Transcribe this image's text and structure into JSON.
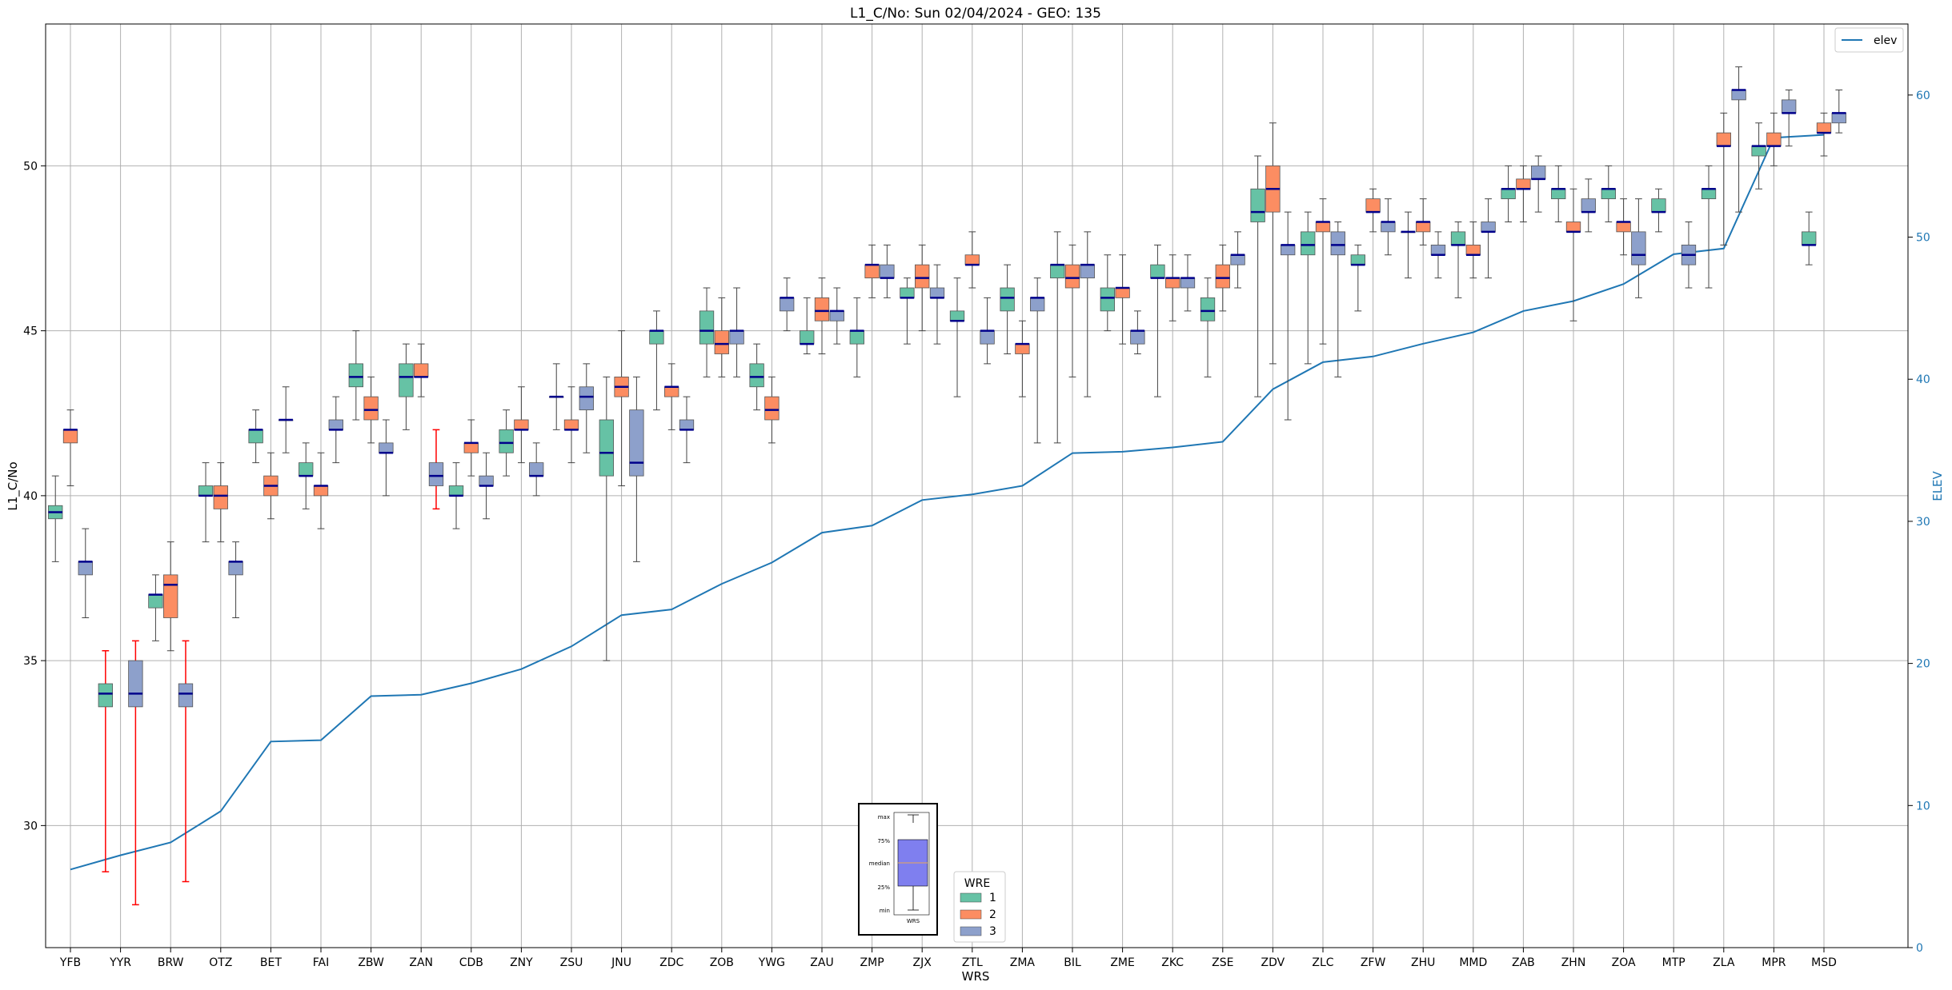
{
  "chart_data": {
    "type": "box",
    "title": "L1_C/No: Sun 02/04/2024 - GEO: 135",
    "xlabel": "WRS",
    "ylabel": "L1_C/No",
    "ylabel_right": "ELEV",
    "ylim": [
      26.3,
      54.3
    ],
    "ylim_right": [
      0,
      65
    ],
    "yticks": [
      30,
      35,
      40,
      45,
      50
    ],
    "yticks_right": [
      0,
      10,
      20,
      30,
      40,
      50,
      60
    ],
    "grid": true,
    "legend_wre": {
      "title": "WRE",
      "placement": "bottom-center",
      "entries": [
        "1",
        "2",
        "3"
      ]
    },
    "legend_elev": {
      "label": "elev",
      "placement": "top-right"
    },
    "colors": {
      "1": "#66c2a5",
      "2": "#fc8d62",
      "3": "#8da0cb",
      "elev": "#1f77b4",
      "median": "#00008b",
      "red_whisker": "#ff0000"
    },
    "inset": {
      "labels": [
        "max",
        "75%",
        "median",
        "25%",
        "min"
      ],
      "xlabel": "WRS"
    },
    "categories": [
      "YFB",
      "YYR",
      "BRW",
      "OTZ",
      "BET",
      "FAI",
      "ZBW",
      "ZAN",
      "CDB",
      "ZNY",
      "ZSU",
      "JNU",
      "ZDC",
      "ZOB",
      "YWG",
      "ZAU",
      "ZMP",
      "ZJX",
      "ZTL",
      "ZMA",
      "BIL",
      "ZME",
      "ZKC",
      "ZSE",
      "ZDV",
      "ZLC",
      "ZFW",
      "ZHU",
      "MMD",
      "ZAB",
      "ZHN",
      "ZOA",
      "MTP",
      "ZLA",
      "MPR",
      "MSD"
    ],
    "elev": [
      5.5,
      6.5,
      7.4,
      9.6,
      14.5,
      14.6,
      17.7,
      17.8,
      18.6,
      19.6,
      21.2,
      23.4,
      23.8,
      25.6,
      27.1,
      29.2,
      29.7,
      31.5,
      31.9,
      32.5,
      34.8,
      34.9,
      35.2,
      35.6,
      39.3,
      41.2,
      41.6,
      42.5,
      43.3,
      44.8,
      45.5,
      46.7,
      48.8,
      49.2,
      57.0,
      57.2
    ],
    "boxes": [
      {
        "wrs": "YFB",
        "wre": "1",
        "min": 38.0,
        "q1": 39.3,
        "median": 39.5,
        "q3": 39.7,
        "max": 40.6
      },
      {
        "wrs": "YFB",
        "wre": "2",
        "min": 40.3,
        "q1": 41.6,
        "median": 42.0,
        "q3": 42.0,
        "max": 42.6
      },
      {
        "wrs": "YFB",
        "wre": "3",
        "min": 36.3,
        "q1": 37.6,
        "median": 38.0,
        "q3": 38.0,
        "max": 39.0
      },
      {
        "wrs": "YYR",
        "wre": "1",
        "min": 28.6,
        "q1": 33.6,
        "median": 34.0,
        "q3": 34.3,
        "max": 35.3,
        "red": true
      },
      {
        "wrs": "YYR",
        "wre": "3",
        "min": 27.6,
        "q1": 33.6,
        "median": 34.0,
        "q3": 35.0,
        "max": 35.6,
        "red": true
      },
      {
        "wrs": "BRW",
        "wre": "1",
        "min": 35.6,
        "q1": 36.6,
        "median": 37.0,
        "q3": 37.0,
        "max": 37.6
      },
      {
        "wrs": "BRW",
        "wre": "2",
        "min": 35.3,
        "q1": 36.3,
        "median": 37.3,
        "q3": 37.6,
        "max": 38.6
      },
      {
        "wrs": "BRW",
        "wre": "3",
        "min": 28.3,
        "q1": 33.6,
        "median": 34.0,
        "q3": 34.3,
        "max": 35.6,
        "red": true
      },
      {
        "wrs": "OTZ",
        "wre": "1",
        "min": 38.6,
        "q1": 40.0,
        "median": 40.0,
        "q3": 40.3,
        "max": 41.0
      },
      {
        "wrs": "OTZ",
        "wre": "2",
        "min": 38.6,
        "q1": 39.6,
        "median": 40.0,
        "q3": 40.3,
        "max": 41.0
      },
      {
        "wrs": "OTZ",
        "wre": "3",
        "min": 36.3,
        "q1": 37.6,
        "median": 38.0,
        "q3": 38.0,
        "max": 38.6
      },
      {
        "wrs": "BET",
        "wre": "1",
        "min": 41.0,
        "q1": 41.6,
        "median": 42.0,
        "q3": 42.0,
        "max": 42.6
      },
      {
        "wrs": "BET",
        "wre": "2",
        "min": 39.3,
        "q1": 40.0,
        "median": 40.3,
        "q3": 40.6,
        "max": 41.3
      },
      {
        "wrs": "BET",
        "wre": "3",
        "min": 41.3,
        "q1": 42.3,
        "median": 42.3,
        "q3": 42.3,
        "max": 43.3
      },
      {
        "wrs": "FAI",
        "wre": "1",
        "min": 39.6,
        "q1": 40.6,
        "median": 40.6,
        "q3": 41.0,
        "max": 41.6
      },
      {
        "wrs": "FAI",
        "wre": "2",
        "min": 39.0,
        "q1": 40.0,
        "median": 40.3,
        "q3": 40.3,
        "max": 41.3
      },
      {
        "wrs": "FAI",
        "wre": "3",
        "min": 41.0,
        "q1": 42.0,
        "median": 42.0,
        "q3": 42.3,
        "max": 43.0
      },
      {
        "wrs": "ZBW",
        "wre": "1",
        "min": 42.3,
        "q1": 43.3,
        "median": 43.6,
        "q3": 44.0,
        "max": 45.0
      },
      {
        "wrs": "ZBW",
        "wre": "2",
        "min": 41.6,
        "q1": 42.3,
        "median": 42.6,
        "q3": 43.0,
        "max": 43.6
      },
      {
        "wrs": "ZBW",
        "wre": "3",
        "min": 40.0,
        "q1": 41.3,
        "median": 41.3,
        "q3": 41.6,
        "max": 42.3
      },
      {
        "wrs": "ZAN",
        "wre": "1",
        "min": 42.0,
        "q1": 43.0,
        "median": 43.6,
        "q3": 44.0,
        "max": 44.6
      },
      {
        "wrs": "ZAN",
        "wre": "2",
        "min": 43.0,
        "q1": 43.6,
        "median": 43.6,
        "q3": 44.0,
        "max": 44.6
      },
      {
        "wrs": "ZAN",
        "wre": "3",
        "min": 39.6,
        "q1": 40.3,
        "median": 40.6,
        "q3": 41.0,
        "max": 42.0,
        "red": true
      },
      {
        "wrs": "CDB",
        "wre": "1",
        "min": 39.0,
        "q1": 40.0,
        "median": 40.0,
        "q3": 40.3,
        "max": 41.0
      },
      {
        "wrs": "CDB",
        "wre": "2",
        "min": 40.6,
        "q1": 41.3,
        "median": 41.6,
        "q3": 41.6,
        "max": 42.3
      },
      {
        "wrs": "CDB",
        "wre": "3",
        "min": 39.3,
        "q1": 40.3,
        "median": 40.3,
        "q3": 40.6,
        "max": 41.3
      },
      {
        "wrs": "ZNY",
        "wre": "1",
        "min": 40.6,
        "q1": 41.3,
        "median": 41.6,
        "q3": 42.0,
        "max": 42.6
      },
      {
        "wrs": "ZNY",
        "wre": "2",
        "min": 41.0,
        "q1": 42.0,
        "median": 42.0,
        "q3": 42.3,
        "max": 43.3
      },
      {
        "wrs": "ZNY",
        "wre": "3",
        "min": 40.0,
        "q1": 40.6,
        "median": 40.6,
        "q3": 41.0,
        "max": 41.6
      },
      {
        "wrs": "ZSU",
        "wre": "1",
        "min": 42.0,
        "q1": 43.0,
        "median": 43.0,
        "q3": 43.0,
        "max": 44.0
      },
      {
        "wrs": "ZSU",
        "wre": "2",
        "min": 41.0,
        "q1": 42.0,
        "median": 42.0,
        "q3": 42.3,
        "max": 43.3
      },
      {
        "wrs": "ZSU",
        "wre": "3",
        "min": 41.3,
        "q1": 42.6,
        "median": 43.0,
        "q3": 43.3,
        "max": 44.0
      },
      {
        "wrs": "JNU",
        "wre": "1",
        "min": 35.0,
        "q1": 40.6,
        "median": 41.3,
        "q3": 42.3,
        "max": 43.6
      },
      {
        "wrs": "JNU",
        "wre": "2",
        "min": 40.3,
        "q1": 43.0,
        "median": 43.3,
        "q3": 43.6,
        "max": 45.0
      },
      {
        "wrs": "JNU",
        "wre": "3",
        "min": 38.0,
        "q1": 40.6,
        "median": 41.0,
        "q3": 42.6,
        "max": 43.6
      },
      {
        "wrs": "ZDC",
        "wre": "1",
        "min": 42.6,
        "q1": 44.6,
        "median": 45.0,
        "q3": 45.0,
        "max": 45.6
      },
      {
        "wrs": "ZDC",
        "wre": "2",
        "min": 42.0,
        "q1": 43.0,
        "median": 43.3,
        "q3": 43.3,
        "max": 44.0
      },
      {
        "wrs": "ZDC",
        "wre": "3",
        "min": 41.0,
        "q1": 42.0,
        "median": 42.0,
        "q3": 42.3,
        "max": 43.0
      },
      {
        "wrs": "ZOB",
        "wre": "1",
        "min": 43.6,
        "q1": 44.6,
        "median": 45.0,
        "q3": 45.6,
        "max": 46.3
      },
      {
        "wrs": "ZOB",
        "wre": "2",
        "min": 43.6,
        "q1": 44.3,
        "median": 44.6,
        "q3": 45.0,
        "max": 46.0
      },
      {
        "wrs": "ZOB",
        "wre": "3",
        "min": 43.6,
        "q1": 44.6,
        "median": 45.0,
        "q3": 45.0,
        "max": 46.3
      },
      {
        "wrs": "YWG",
        "wre": "1",
        "min": 42.6,
        "q1": 43.3,
        "median": 43.6,
        "q3": 44.0,
        "max": 44.6
      },
      {
        "wrs": "YWG",
        "wre": "2",
        "min": 41.6,
        "q1": 42.3,
        "median": 42.6,
        "q3": 43.0,
        "max": 43.6
      },
      {
        "wrs": "YWG",
        "wre": "3",
        "min": 45.0,
        "q1": 45.6,
        "median": 46.0,
        "q3": 46.0,
        "max": 46.6
      },
      {
        "wrs": "ZAU",
        "wre": "1",
        "min": 44.3,
        "q1": 44.6,
        "median": 44.6,
        "q3": 45.0,
        "max": 46.0
      },
      {
        "wrs": "ZAU",
        "wre": "2",
        "min": 44.3,
        "q1": 45.3,
        "median": 45.6,
        "q3": 46.0,
        "max": 46.6
      },
      {
        "wrs": "ZAU",
        "wre": "3",
        "min": 44.6,
        "q1": 45.3,
        "median": 45.6,
        "q3": 45.6,
        "max": 46.3
      },
      {
        "wrs": "ZMP",
        "wre": "1",
        "min": 43.6,
        "q1": 44.6,
        "median": 45.0,
        "q3": 45.0,
        "max": 46.0
      },
      {
        "wrs": "ZMP",
        "wre": "2",
        "min": 46.0,
        "q1": 46.6,
        "median": 47.0,
        "q3": 47.0,
        "max": 47.6
      },
      {
        "wrs": "ZMP",
        "wre": "3",
        "min": 46.0,
        "q1": 46.6,
        "median": 46.6,
        "q3": 47.0,
        "max": 47.6
      },
      {
        "wrs": "ZJX",
        "wre": "1",
        "min": 44.6,
        "q1": 46.0,
        "median": 46.0,
        "q3": 46.3,
        "max": 46.6
      },
      {
        "wrs": "ZJX",
        "wre": "2",
        "min": 45.0,
        "q1": 46.3,
        "median": 46.6,
        "q3": 47.0,
        "max": 47.6
      },
      {
        "wrs": "ZJX",
        "wre": "3",
        "min": 44.6,
        "q1": 46.0,
        "median": 46.0,
        "q3": 46.3,
        "max": 47.0
      },
      {
        "wrs": "ZTL",
        "wre": "1",
        "min": 43.0,
        "q1": 45.3,
        "median": 45.3,
        "q3": 45.6,
        "max": 46.6
      },
      {
        "wrs": "ZTL",
        "wre": "2",
        "min": 46.3,
        "q1": 47.0,
        "median": 47.0,
        "q3": 47.3,
        "max": 48.0
      },
      {
        "wrs": "ZTL",
        "wre": "3",
        "min": 44.0,
        "q1": 44.6,
        "median": 45.0,
        "q3": 45.0,
        "max": 46.0
      },
      {
        "wrs": "ZMA",
        "wre": "1",
        "min": 44.3,
        "q1": 45.6,
        "median": 46.0,
        "q3": 46.3,
        "max": 47.0
      },
      {
        "wrs": "ZMA",
        "wre": "2",
        "min": 43.0,
        "q1": 44.3,
        "median": 44.6,
        "q3": 44.6,
        "max": 45.3
      },
      {
        "wrs": "ZMA",
        "wre": "3",
        "min": 41.6,
        "q1": 45.6,
        "median": 46.0,
        "q3": 46.0,
        "max": 46.6
      },
      {
        "wrs": "BIL",
        "wre": "1",
        "min": 41.6,
        "q1": 46.6,
        "median": 47.0,
        "q3": 47.0,
        "max": 48.0
      },
      {
        "wrs": "BIL",
        "wre": "2",
        "min": 43.6,
        "q1": 46.3,
        "median": 46.6,
        "q3": 47.0,
        "max": 47.6
      },
      {
        "wrs": "BIL",
        "wre": "3",
        "min": 43.0,
        "q1": 46.6,
        "median": 47.0,
        "q3": 47.0,
        "max": 48.0
      },
      {
        "wrs": "ZME",
        "wre": "1",
        "min": 45.0,
        "q1": 45.6,
        "median": 46.0,
        "q3": 46.3,
        "max": 47.3
      },
      {
        "wrs": "ZME",
        "wre": "2",
        "min": 44.6,
        "q1": 46.0,
        "median": 46.3,
        "q3": 46.3,
        "max": 47.3
      },
      {
        "wrs": "ZME",
        "wre": "3",
        "min": 44.3,
        "q1": 44.6,
        "median": 45.0,
        "q3": 45.0,
        "max": 45.6
      },
      {
        "wrs": "ZKC",
        "wre": "1",
        "min": 43.0,
        "q1": 46.6,
        "median": 46.6,
        "q3": 47.0,
        "max": 47.6
      },
      {
        "wrs": "ZKC",
        "wre": "2",
        "min": 45.3,
        "q1": 46.3,
        "median": 46.6,
        "q3": 46.6,
        "max": 47.3
      },
      {
        "wrs": "ZKC",
        "wre": "3",
        "min": 45.6,
        "q1": 46.3,
        "median": 46.6,
        "q3": 46.6,
        "max": 47.3
      },
      {
        "wrs": "ZSE",
        "wre": "1",
        "min": 43.6,
        "q1": 45.3,
        "median": 45.6,
        "q3": 46.0,
        "max": 46.6
      },
      {
        "wrs": "ZSE",
        "wre": "2",
        "min": 45.6,
        "q1": 46.3,
        "median": 46.6,
        "q3": 47.0,
        "max": 47.6
      },
      {
        "wrs": "ZSE",
        "wre": "3",
        "min": 46.3,
        "q1": 47.0,
        "median": 47.3,
        "q3": 47.3,
        "max": 48.0
      },
      {
        "wrs": "ZDV",
        "wre": "1",
        "min": 43.0,
        "q1": 48.3,
        "median": 48.6,
        "q3": 49.3,
        "max": 50.3
      },
      {
        "wrs": "ZDV",
        "wre": "2",
        "min": 44.0,
        "q1": 48.6,
        "median": 49.3,
        "q3": 50.0,
        "max": 51.3
      },
      {
        "wrs": "ZDV",
        "wre": "3",
        "min": 42.3,
        "q1": 47.3,
        "median": 47.6,
        "q3": 47.6,
        "max": 48.6
      },
      {
        "wrs": "ZLC",
        "wre": "1",
        "min": 44.0,
        "q1": 47.3,
        "median": 47.6,
        "q3": 48.0,
        "max": 48.6
      },
      {
        "wrs": "ZLC",
        "wre": "2",
        "min": 44.6,
        "q1": 48.0,
        "median": 48.3,
        "q3": 48.3,
        "max": 49.0
      },
      {
        "wrs": "ZLC",
        "wre": "3",
        "min": 43.6,
        "q1": 47.3,
        "median": 47.6,
        "q3": 48.0,
        "max": 48.3
      },
      {
        "wrs": "ZFW",
        "wre": "1",
        "min": 45.6,
        "q1": 47.0,
        "median": 47.0,
        "q3": 47.3,
        "max": 47.6
      },
      {
        "wrs": "ZFW",
        "wre": "2",
        "min": 48.0,
        "q1": 48.6,
        "median": 48.6,
        "q3": 49.0,
        "max": 49.3
      },
      {
        "wrs": "ZFW",
        "wre": "3",
        "min": 47.3,
        "q1": 48.0,
        "median": 48.3,
        "q3": 48.3,
        "max": 49.0
      },
      {
        "wrs": "ZHU",
        "wre": "1",
        "min": 46.6,
        "q1": 48.0,
        "median": 48.0,
        "q3": 48.0,
        "max": 48.6
      },
      {
        "wrs": "ZHU",
        "wre": "2",
        "min": 47.6,
        "q1": 48.0,
        "median": 48.3,
        "q3": 48.3,
        "max": 49.0
      },
      {
        "wrs": "ZHU",
        "wre": "3",
        "min": 46.6,
        "q1": 47.3,
        "median": 47.3,
        "q3": 47.6,
        "max": 48.0
      },
      {
        "wrs": "MMD",
        "wre": "1",
        "min": 46.0,
        "q1": 47.6,
        "median": 47.6,
        "q3": 48.0,
        "max": 48.3
      },
      {
        "wrs": "MMD",
        "wre": "2",
        "min": 46.6,
        "q1": 47.3,
        "median": 47.3,
        "q3": 47.6,
        "max": 48.3
      },
      {
        "wrs": "MMD",
        "wre": "3",
        "min": 46.6,
        "q1": 48.0,
        "median": 48.0,
        "q3": 48.3,
        "max": 49.0
      },
      {
        "wrs": "ZAB",
        "wre": "1",
        "min": 48.3,
        "q1": 49.0,
        "median": 49.3,
        "q3": 49.3,
        "max": 50.0
      },
      {
        "wrs": "ZAB",
        "wre": "2",
        "min": 48.3,
        "q1": 49.3,
        "median": 49.3,
        "q3": 49.6,
        "max": 50.0
      },
      {
        "wrs": "ZAB",
        "wre": "3",
        "min": 48.6,
        "q1": 49.6,
        "median": 49.6,
        "q3": 50.0,
        "max": 50.3
      },
      {
        "wrs": "ZHN",
        "wre": "1",
        "min": 48.3,
        "q1": 49.0,
        "median": 49.3,
        "q3": 49.3,
        "max": 50.0
      },
      {
        "wrs": "ZHN",
        "wre": "2",
        "min": 45.3,
        "q1": 48.0,
        "median": 48.0,
        "q3": 48.3,
        "max": 49.3
      },
      {
        "wrs": "ZHN",
        "wre": "3",
        "min": 48.0,
        "q1": 48.6,
        "median": 48.6,
        "q3": 49.0,
        "max": 49.6
      },
      {
        "wrs": "ZOA",
        "wre": "1",
        "min": 48.3,
        "q1": 49.0,
        "median": 49.3,
        "q3": 49.3,
        "max": 50.0
      },
      {
        "wrs": "ZOA",
        "wre": "2",
        "min": 47.3,
        "q1": 48.0,
        "median": 48.3,
        "q3": 48.3,
        "max": 49.0
      },
      {
        "wrs": "ZOA",
        "wre": "3",
        "min": 46.0,
        "q1": 47.0,
        "median": 47.3,
        "q3": 48.0,
        "max": 49.0
      },
      {
        "wrs": "MTP",
        "wre": "1",
        "min": 48.0,
        "q1": 48.6,
        "median": 48.6,
        "q3": 49.0,
        "max": 49.3
      },
      {
        "wrs": "MTP",
        "wre": "3",
        "min": 46.3,
        "q1": 47.0,
        "median": 47.3,
        "q3": 47.6,
        "max": 48.3
      },
      {
        "wrs": "ZLA",
        "wre": "1",
        "min": 46.3,
        "q1": 49.0,
        "median": 49.3,
        "q3": 49.3,
        "max": 50.0
      },
      {
        "wrs": "ZLA",
        "wre": "2",
        "min": 47.6,
        "q1": 50.6,
        "median": 50.6,
        "q3": 51.0,
        "max": 51.6
      },
      {
        "wrs": "ZLA",
        "wre": "3",
        "min": 48.6,
        "q1": 52.0,
        "median": 52.3,
        "q3": 52.3,
        "max": 53.0
      },
      {
        "wrs": "MPR",
        "wre": "1",
        "min": 49.3,
        "q1": 50.3,
        "median": 50.6,
        "q3": 50.6,
        "max": 51.3
      },
      {
        "wrs": "MPR",
        "wre": "2",
        "min": 50.0,
        "q1": 50.6,
        "median": 50.6,
        "q3": 51.0,
        "max": 51.6
      },
      {
        "wrs": "MPR",
        "wre": "3",
        "min": 50.6,
        "q1": 51.6,
        "median": 51.6,
        "q3": 52.0,
        "max": 52.3
      },
      {
        "wrs": "MSD",
        "wre": "1",
        "min": 47.0,
        "q1": 47.6,
        "median": 47.6,
        "q3": 48.0,
        "max": 48.6
      },
      {
        "wrs": "MSD",
        "wre": "2",
        "min": 50.3,
        "q1": 51.0,
        "median": 51.0,
        "q3": 51.3,
        "max": 51.6
      },
      {
        "wrs": "MSD",
        "wre": "3",
        "min": 51.0,
        "q1": 51.3,
        "median": 51.6,
        "q3": 51.6,
        "max": 52.3
      }
    ]
  }
}
